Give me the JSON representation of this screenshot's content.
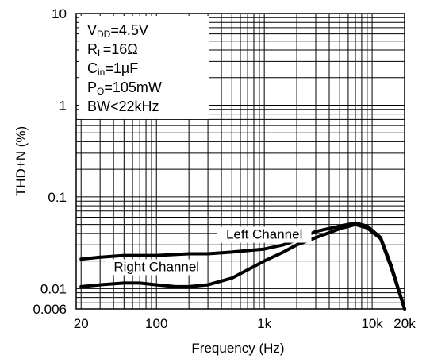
{
  "chart_data": {
    "type": "line",
    "title": "",
    "xlabel": "Frequency (Hz)",
    "ylabel": "THD+N (%)",
    "x_scale": "log",
    "y_scale": "log",
    "xlim": [
      18,
      20000
    ],
    "ylim": [
      0.006,
      10
    ],
    "x_ticks": [
      {
        "value": 20,
        "label": "20"
      },
      {
        "value": 100,
        "label": "100"
      },
      {
        "value": 1000,
        "label": "1k"
      },
      {
        "value": 10000,
        "label": "10k"
      },
      {
        "value": 20000,
        "label": "20k"
      }
    ],
    "y_ticks": [
      {
        "value": 10,
        "label": "10"
      },
      {
        "value": 1,
        "label": "1"
      },
      {
        "value": 0.1,
        "label": "0.1"
      },
      {
        "value": 0.01,
        "label": "0.01"
      },
      {
        "value": 0.006,
        "label": "0.006"
      }
    ],
    "grid": true,
    "conditions": [
      {
        "main": "V",
        "sub": "DD",
        "rest": "=4.5V"
      },
      {
        "main": "R",
        "sub": "L",
        "rest": "=16Ω"
      },
      {
        "main": "C",
        "sub": "in",
        "rest": "=1µF"
      },
      {
        "main": "P",
        "sub": "O",
        "rest": "=105mW"
      },
      {
        "main": "BW<22kHz",
        "sub": "",
        "rest": ""
      }
    ],
    "series": [
      {
        "name": "Left Channel",
        "label_at": [
          1000,
          0.035
        ],
        "x": [
          20,
          30,
          50,
          100,
          200,
          300,
          500,
          700,
          1000,
          1500,
          2000,
          3000,
          5000,
          7000,
          9000,
          12000,
          15000,
          20000
        ],
        "y": [
          0.021,
          0.022,
          0.023,
          0.023,
          0.024,
          0.024,
          0.025,
          0.026,
          0.027,
          0.03,
          0.034,
          0.042,
          0.048,
          0.052,
          0.048,
          0.036,
          0.018,
          0.006
        ]
      },
      {
        "name": "Right Channel",
        "label_at": [
          100,
          0.0155
        ],
        "x": [
          20,
          30,
          50,
          70,
          100,
          150,
          200,
          300,
          500,
          700,
          1000,
          1500,
          2000,
          3000,
          5000,
          7000,
          9000,
          12000,
          15000,
          20000
        ],
        "y": [
          0.0105,
          0.011,
          0.0115,
          0.0115,
          0.011,
          0.0105,
          0.0105,
          0.011,
          0.013,
          0.016,
          0.02,
          0.025,
          0.03,
          0.036,
          0.045,
          0.05,
          0.046,
          0.035,
          0.017,
          0.006
        ]
      }
    ]
  }
}
